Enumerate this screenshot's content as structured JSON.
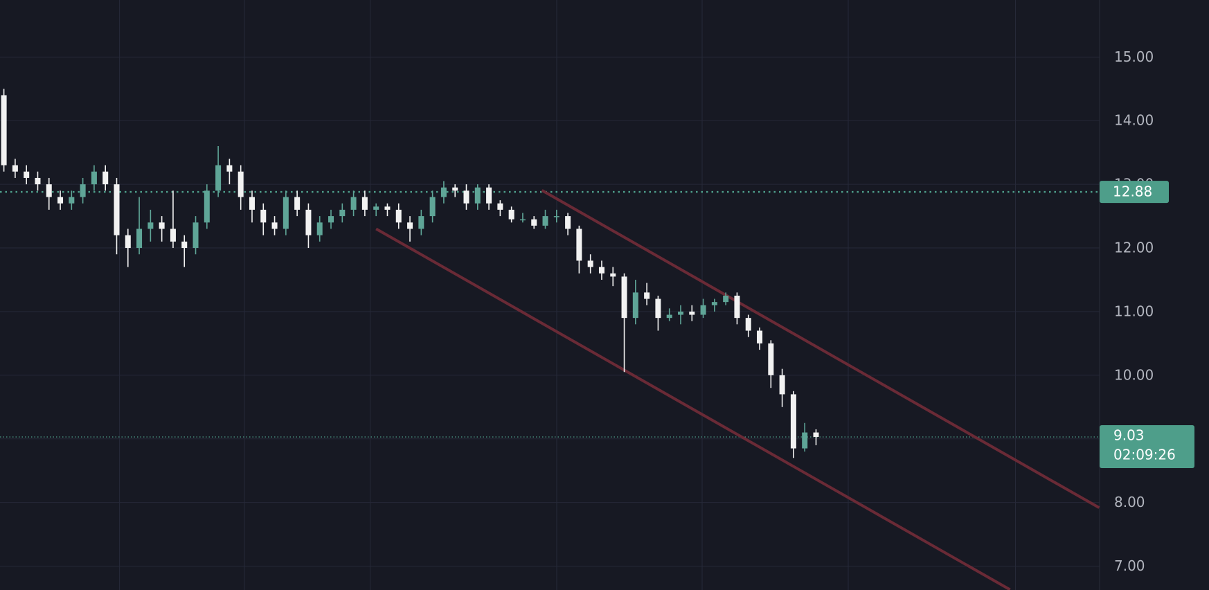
{
  "chart_data": {
    "type": "candlestick",
    "up_color": "#5fa597",
    "down_color": "#f2f2f2",
    "grid": true,
    "ylim": [
      6.625,
      15.896
    ],
    "yticks": [
      {
        "value": 7,
        "label": "7.00"
      },
      {
        "value": 8,
        "label": "8.00"
      },
      {
        "value": 9,
        "label": "9.00"
      },
      {
        "value": 10,
        "label": "10.00"
      },
      {
        "value": 11,
        "label": "11.00"
      },
      {
        "value": 12,
        "label": "12.00"
      },
      {
        "value": 13,
        "label": "13.00"
      },
      {
        "value": 14,
        "label": "14.00"
      },
      {
        "value": 15,
        "label": "15.00"
      }
    ],
    "open": [
      14.4,
      13.3,
      13.2,
      13.1,
      13.0,
      12.8,
      12.7,
      12.8,
      13.0,
      13.2,
      13.0,
      12.2,
      12.0,
      12.3,
      12.4,
      12.3,
      12.1,
      12.0,
      12.4,
      12.9,
      13.3,
      13.2,
      12.8,
      12.6,
      12.4,
      12.3,
      12.8,
      12.6,
      12.2,
      12.4,
      12.5,
      12.6,
      12.8,
      12.6,
      12.65,
      12.6,
      12.4,
      12.3,
      12.5,
      12.8,
      12.95,
      12.9,
      12.7,
      12.95,
      12.7,
      12.6,
      12.45,
      12.45,
      12.35,
      12.5,
      12.5,
      12.3,
      11.8,
      11.7,
      11.6,
      11.55,
      10.9,
      11.3,
      11.2,
      10.9,
      10.95,
      11.0,
      10.95,
      11.1,
      11.15,
      11.25,
      10.9,
      10.7,
      10.5,
      10.0,
      9.7,
      8.85,
      9.1
    ],
    "high": [
      14.5,
      13.4,
      13.3,
      13.2,
      13.1,
      12.9,
      12.9,
      13.1,
      13.3,
      13.3,
      13.1,
      12.3,
      12.8,
      12.6,
      12.5,
      12.9,
      12.2,
      12.5,
      13.0,
      13.6,
      13.4,
      13.3,
      12.9,
      12.7,
      12.5,
      12.9,
      12.9,
      12.7,
      12.5,
      12.6,
      12.7,
      12.9,
      12.9,
      12.7,
      12.7,
      12.7,
      12.5,
      12.6,
      12.9,
      13.05,
      13.0,
      13.0,
      13.0,
      13.0,
      12.75,
      12.65,
      12.55,
      12.5,
      12.6,
      12.6,
      12.55,
      12.35,
      11.9,
      11.8,
      11.7,
      11.6,
      11.5,
      11.45,
      11.25,
      11.05,
      11.1,
      11.1,
      11.2,
      11.2,
      11.3,
      11.3,
      10.95,
      10.75,
      10.55,
      10.1,
      9.75,
      9.25,
      9.15
    ],
    "low": [
      13.2,
      13.1,
      13.0,
      12.9,
      12.6,
      12.6,
      12.6,
      12.7,
      12.9,
      12.9,
      11.9,
      11.7,
      11.9,
      12.1,
      12.1,
      12.0,
      11.7,
      11.9,
      12.3,
      12.8,
      13.0,
      12.6,
      12.4,
      12.2,
      12.2,
      12.2,
      12.5,
      12.0,
      12.1,
      12.3,
      12.4,
      12.5,
      12.5,
      12.5,
      12.5,
      12.3,
      12.1,
      12.2,
      12.4,
      12.7,
      12.8,
      12.6,
      12.6,
      12.6,
      12.5,
      12.4,
      12.4,
      12.3,
      12.3,
      12.4,
      12.2,
      11.6,
      11.6,
      11.5,
      11.4,
      10.05,
      10.8,
      11.1,
      10.7,
      10.85,
      10.8,
      10.85,
      10.9,
      11.0,
      11.1,
      10.8,
      10.6,
      10.4,
      9.8,
      9.5,
      8.7,
      8.8,
      8.9
    ],
    "close": [
      13.3,
      13.2,
      13.1,
      13.0,
      12.8,
      12.7,
      12.8,
      13.0,
      13.2,
      13.0,
      12.2,
      12.0,
      12.3,
      12.4,
      12.3,
      12.1,
      12.0,
      12.4,
      12.9,
      13.3,
      13.2,
      12.8,
      12.6,
      12.4,
      12.3,
      12.8,
      12.6,
      12.2,
      12.4,
      12.5,
      12.6,
      12.8,
      12.6,
      12.65,
      12.6,
      12.4,
      12.3,
      12.5,
      12.8,
      12.95,
      12.9,
      12.7,
      12.95,
      12.7,
      12.6,
      12.45,
      12.45,
      12.35,
      12.5,
      12.5,
      12.3,
      11.8,
      11.7,
      11.6,
      11.55,
      10.9,
      11.3,
      11.2,
      10.9,
      10.95,
      11.0,
      10.95,
      11.1,
      11.15,
      11.25,
      10.9,
      10.7,
      10.5,
      10.0,
      9.7,
      8.85,
      9.1,
      9.03
    ],
    "trend_lines": [
      {
        "color": "#6a2a36",
        "x": [
          47.7,
          97.1
        ],
        "y": [
          12.905,
          7.918
        ]
      },
      {
        "color": "#6a2a36",
        "x": [
          33.0,
          89.2
        ],
        "y": [
          12.3,
          6.63
        ]
      }
    ],
    "level": {
      "value": 12.88,
      "color": "#4e9e8a"
    },
    "last_price": {
      "value": 9.03,
      "countdown": "02:09:26",
      "color": "#4e9e8a"
    }
  }
}
